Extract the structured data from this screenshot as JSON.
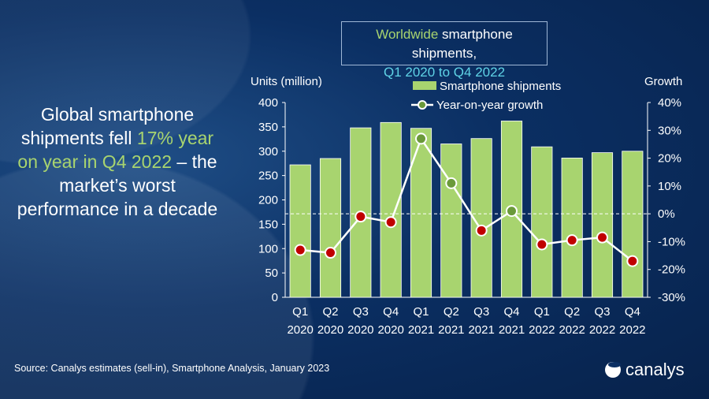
{
  "headline": {
    "part1": "Global smartphone shipments fell ",
    "highlight1": "17%",
    "part2": " ",
    "highlight2": "year on year in Q4 2022",
    "part3": " – the market’s worst performance in a decade"
  },
  "title": {
    "highlight": "Worldwide",
    "rest": " smartphone shipments,",
    "line2": "Q1 2020 to Q4 2022"
  },
  "source": "Source: Canalys estimates (sell-in), Smartphone Analysis, January 2023",
  "logo": "canalys",
  "colors": {
    "bar": "#a8d46f",
    "positive": "#6b9a3a",
    "negative": "#c00000",
    "line": "#ffffff",
    "background": "#0b2f63"
  },
  "chart_data": {
    "type": "bar+line",
    "categories": [
      "Q1 2020",
      "Q2 2020",
      "Q3 2020",
      "Q4 2020",
      "Q1 2021",
      "Q2 2021",
      "Q3 2021",
      "Q4 2021",
      "Q1 2022",
      "Q2 2022",
      "Q3 2022",
      "Q4 2022"
    ],
    "category_lines": [
      [
        "Q1",
        "2020"
      ],
      [
        "Q2",
        "2020"
      ],
      [
        "Q3",
        "2020"
      ],
      [
        "Q4",
        "2020"
      ],
      [
        "Q1",
        "2021"
      ],
      [
        "Q2",
        "2021"
      ],
      [
        "Q3",
        "2021"
      ],
      [
        "Q4",
        "2021"
      ],
      [
        "Q1",
        "2022"
      ],
      [
        "Q2",
        "2022"
      ],
      [
        "Q3",
        "2022"
      ],
      [
        "Q4",
        "2022"
      ]
    ],
    "series": [
      {
        "name": "Smartphone shipments",
        "type": "bar",
        "axis": "left",
        "values": [
          272,
          285,
          348,
          359,
          347,
          315,
          326,
          362,
          309,
          286,
          297,
          300
        ]
      },
      {
        "name": "Year-on-year growth",
        "type": "line",
        "axis": "right",
        "values": [
          -13,
          -14,
          -1,
          -3,
          27,
          11,
          -6,
          1,
          -11,
          -9.5,
          -8.5,
          -17
        ]
      }
    ],
    "ylabel": "Units (million)",
    "ylim": [
      0,
      400
    ],
    "yticks": [
      "0",
      "50",
      "100",
      "150",
      "200",
      "250",
      "300",
      "350",
      "400"
    ],
    "y2label": "Growth",
    "y2lim": [
      -30,
      40
    ],
    "y2ticks": [
      "-30%",
      "-20%",
      "-10%",
      "0%",
      "10%",
      "20%",
      "30%",
      "40%"
    ],
    "legend": "top"
  }
}
